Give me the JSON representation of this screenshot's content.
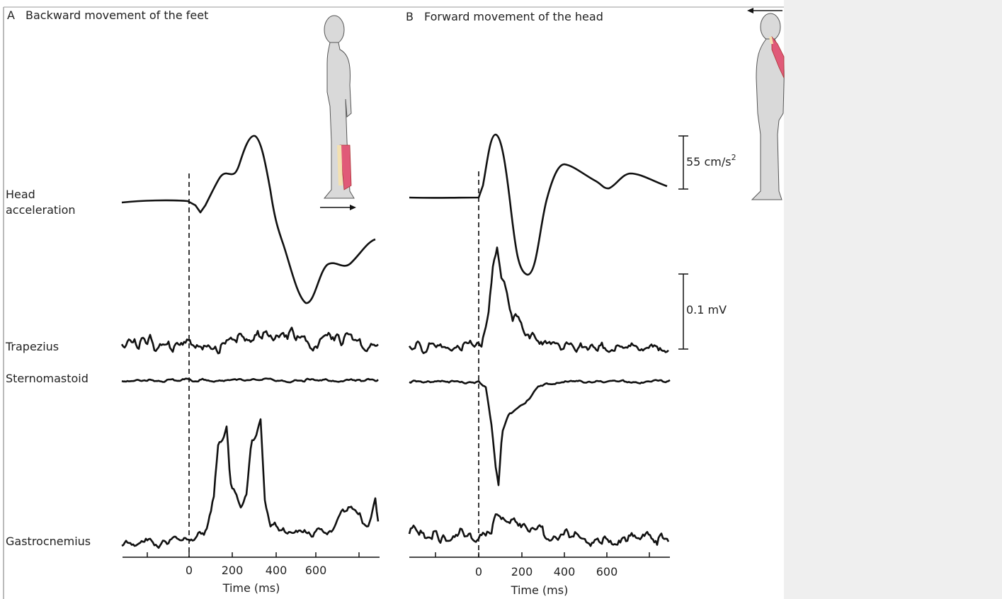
{
  "panels": [
    {
      "letter": "A",
      "title": "Backward movement of the feet",
      "axis_label": "Time (ms)",
      "ticks": [
        "0",
        "200",
        "400",
        "600"
      ]
    },
    {
      "letter": "B",
      "title": "Forward movement of the head",
      "axis_label": "Time (ms)",
      "ticks": [
        "0",
        "200",
        "400",
        "600"
      ]
    }
  ],
  "trace_labels": [
    [
      "Head",
      "acceleration"
    ],
    [
      "Trapezius"
    ],
    [
      "Sternomastoid"
    ],
    [
      "Gastrocnemius"
    ]
  ],
  "scale_bars": [
    {
      "label": "55 cm/s",
      "superscript": "2"
    },
    {
      "label": "0.1 mV"
    }
  ]
}
